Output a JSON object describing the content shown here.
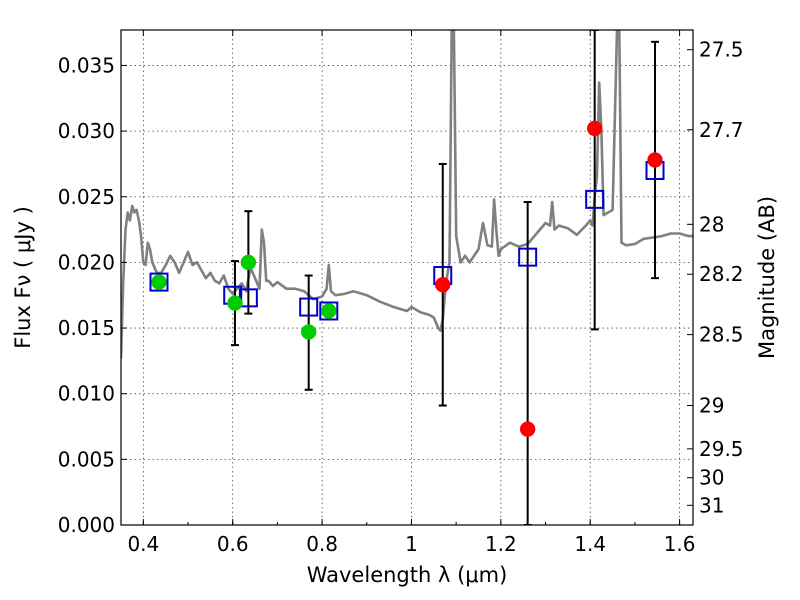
{
  "chart_data": {
    "type": "scatter",
    "xlabel": "Wavelength  λ (μm)",
    "ylabel": "Flux  Fν  ( μJy )",
    "y2label": "Magnitude (AB)",
    "xlim": [
      0.35,
      1.63
    ],
    "ylim": [
      0.0,
      0.0377
    ],
    "x_ticks": [
      0.4,
      0.6,
      0.8,
      1.0,
      1.2,
      1.4,
      1.6
    ],
    "x_tick_labels": [
      "0.4",
      "0.6",
      "0.8",
      "1",
      "1.2",
      "1.4",
      "1.6"
    ],
    "y_ticks": [
      0.0,
      0.005,
      0.01,
      0.015,
      0.02,
      0.025,
      0.03,
      0.035
    ],
    "y_tick_labels": [
      "0.000",
      "0.005",
      "0.010",
      "0.015",
      "0.020",
      "0.025",
      "0.030",
      "0.035"
    ],
    "y2_ticks": [
      {
        "label": "27.5",
        "flux": 0.0362
      },
      {
        "label": "27.7",
        "flux": 0.0301
      },
      {
        "label": "28",
        "flux": 0.0229
      },
      {
        "label": "28.2",
        "flux": 0.0191
      },
      {
        "label": "28.5",
        "flux": 0.0145
      },
      {
        "label": "29",
        "flux": 0.0091
      },
      {
        "label": "29.5",
        "flux": 0.0058
      },
      {
        "label": "30",
        "flux": 0.0036
      },
      {
        "label": "31",
        "flux": 0.0015
      }
    ],
    "grid": true,
    "series": [
      {
        "kind": "line",
        "color": "#808080",
        "x": [
          0.35,
          0.355,
          0.36,
          0.365,
          0.37,
          0.375,
          0.38,
          0.385,
          0.39,
          0.395,
          0.4,
          0.405,
          0.41,
          0.415,
          0.42,
          0.43,
          0.44,
          0.45,
          0.46,
          0.47,
          0.48,
          0.49,
          0.5,
          0.51,
          0.52,
          0.53,
          0.54,
          0.55,
          0.56,
          0.57,
          0.58,
          0.59,
          0.6,
          0.61,
          0.62,
          0.63,
          0.64,
          0.65,
          0.66,
          0.665,
          0.67,
          0.675,
          0.68,
          0.69,
          0.7,
          0.72,
          0.74,
          0.76,
          0.78,
          0.8,
          0.81,
          0.815,
          0.82,
          0.83,
          0.85,
          0.87,
          0.9,
          0.93,
          0.96,
          0.99,
          1.0,
          1.02,
          1.04,
          1.05,
          1.06,
          1.065,
          1.07,
          1.075,
          1.08,
          1.085,
          1.09,
          1.095,
          1.1,
          1.11,
          1.12,
          1.13,
          1.14,
          1.15,
          1.16,
          1.17,
          1.18,
          1.185,
          1.19,
          1.195,
          1.2,
          1.22,
          1.24,
          1.26,
          1.28,
          1.3,
          1.31,
          1.315,
          1.32,
          1.33,
          1.35,
          1.37,
          1.39,
          1.4,
          1.405,
          1.41,
          1.415,
          1.42,
          1.425,
          1.43,
          1.44,
          1.45,
          1.46,
          1.465,
          1.47,
          1.48,
          1.5,
          1.52,
          1.54,
          1.56,
          1.58,
          1.6,
          1.62,
          1.63
        ],
        "y": [
          0.0127,
          0.0185,
          0.0225,
          0.0238,
          0.0232,
          0.0243,
          0.0238,
          0.024,
          0.0232,
          0.022,
          0.02,
          0.0198,
          0.0215,
          0.021,
          0.02,
          0.0192,
          0.0192,
          0.0198,
          0.0205,
          0.02,
          0.0192,
          0.02,
          0.0208,
          0.0198,
          0.02,
          0.0194,
          0.0188,
          0.0192,
          0.0186,
          0.0184,
          0.019,
          0.018,
          0.0176,
          0.018,
          0.0184,
          0.0178,
          0.0196,
          0.0188,
          0.018,
          0.0225,
          0.0215,
          0.0186,
          0.0186,
          0.0182,
          0.0185,
          0.018,
          0.018,
          0.0178,
          0.0172,
          0.0174,
          0.018,
          0.0198,
          0.0178,
          0.0175,
          0.0176,
          0.0178,
          0.0175,
          0.017,
          0.0166,
          0.0163,
          0.0166,
          0.0162,
          0.016,
          0.0158,
          0.015,
          0.0148,
          0.0157,
          0.0176,
          0.019,
          0.02,
          0.0377,
          0.0377,
          0.022,
          0.02,
          0.0205,
          0.02,
          0.0205,
          0.021,
          0.023,
          0.0213,
          0.0212,
          0.0248,
          0.0224,
          0.0205,
          0.021,
          0.0215,
          0.0212,
          0.0214,
          0.0222,
          0.023,
          0.0228,
          0.0246,
          0.0225,
          0.0228,
          0.0226,
          0.0221,
          0.0228,
          0.0232,
          0.0228,
          0.025,
          0.0265,
          0.0337,
          0.03,
          0.0236,
          0.0238,
          0.024,
          0.0377,
          0.0377,
          0.0215,
          0.0213,
          0.0214,
          0.0218,
          0.0219,
          0.022,
          0.0222,
          0.0222,
          0.022,
          0.022
        ]
      },
      {
        "kind": "markers",
        "marker": "square-open",
        "color": "#0000cc",
        "x": [
          0.435,
          0.6,
          0.635,
          0.77,
          0.815,
          1.07,
          1.26,
          1.41,
          1.545
        ],
        "y": [
          0.0185,
          0.0175,
          0.0173,
          0.0166,
          0.0163,
          0.019,
          0.0204,
          0.0248,
          0.027
        ]
      },
      {
        "kind": "markers",
        "marker": "circle",
        "color": "#00cc00",
        "x": [
          0.435,
          0.605,
          0.635,
          0.77,
          0.815
        ],
        "y": [
          0.0185,
          0.0169,
          0.02,
          0.0147,
          0.0163
        ],
        "yerr_low": [
          0,
          0.0137,
          0.0161,
          0.0103,
          0
        ],
        "yerr_high": [
          0,
          0.0201,
          0.0239,
          0.019,
          0
        ]
      },
      {
        "kind": "markers",
        "marker": "circle",
        "color": "#ff0000",
        "x": [
          1.07,
          1.26,
          1.41,
          1.545
        ],
        "y": [
          0.0183,
          0.0073,
          0.0302,
          0.0278
        ],
        "yerr_low": [
          0.0091,
          0.0,
          0.0149,
          0.0188
        ],
        "yerr_high": [
          0.0275,
          0.0246,
          0.0377,
          0.0368
        ]
      }
    ]
  }
}
